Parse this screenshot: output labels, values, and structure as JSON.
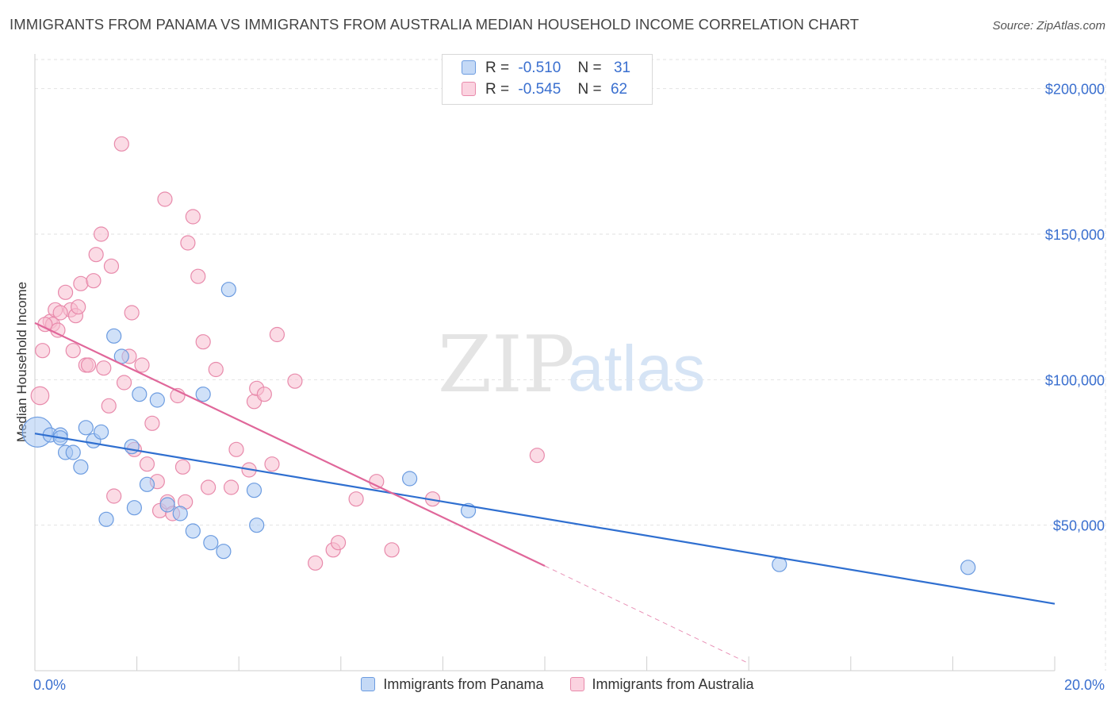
{
  "title": "IMMIGRANTS FROM PANAMA VS IMMIGRANTS FROM AUSTRALIA MEDIAN HOUSEHOLD INCOME CORRELATION CHART",
  "source": "Source: ZipAtlas.com",
  "watermark": {
    "zip": "ZIP",
    "atlas": "atlas"
  },
  "legend": {
    "panama": {
      "r_label": "R =",
      "r_value": "-0.510",
      "n_label": "N =",
      "n_value": "31"
    },
    "australia": {
      "r_label": "R =",
      "r_value": "-0.545",
      "n_label": "N =",
      "n_value": "62"
    }
  },
  "colors": {
    "panama_fill": "#aac8f2",
    "panama_stroke": "#6b9be0",
    "panama_line": "#2f6fd0",
    "australia_fill": "#f7bdd0",
    "australia_stroke": "#e88aab",
    "australia_line": "#e0679a",
    "axis_label": "#3a6fcf",
    "grid": "#e2e2e2"
  },
  "chart_data": {
    "type": "scatter",
    "title": "IMMIGRANTS FROM PANAMA VS IMMIGRANTS FROM AUSTRALIA MEDIAN HOUSEHOLD INCOME CORRELATION CHART",
    "xlabel": "",
    "ylabel": "Median Household Income",
    "xlim": [
      0,
      20
    ],
    "ylim": [
      0,
      210000
    ],
    "x_tick_labels": [
      "0.0%",
      "20.0%"
    ],
    "y_ticks": [
      50000,
      100000,
      150000,
      200000
    ],
    "y_tick_labels": [
      "$50,000",
      "$100,000",
      "$150,000",
      "$200,000"
    ],
    "grid": true,
    "legend_position": "top-center",
    "series": [
      {
        "name": "Immigrants from Panama",
        "r": -0.51,
        "n": 31,
        "points": [
          [
            0.05,
            82000,
            3
          ],
          [
            0.3,
            81000,
            1
          ],
          [
            0.5,
            81000,
            1
          ],
          [
            0.6,
            75000,
            1
          ],
          [
            0.75,
            75000,
            1
          ],
          [
            0.9,
            70000,
            1
          ],
          [
            1.0,
            83500,
            1
          ],
          [
            1.15,
            79000,
            1
          ],
          [
            1.3,
            82000,
            1
          ],
          [
            1.4,
            52000,
            1
          ],
          [
            1.55,
            115000,
            1
          ],
          [
            1.7,
            108000,
            1
          ],
          [
            1.9,
            77000,
            1
          ],
          [
            1.95,
            56000,
            1
          ],
          [
            2.05,
            95000,
            1
          ],
          [
            2.2,
            64000,
            1
          ],
          [
            2.4,
            93000,
            1
          ],
          [
            2.6,
            57000,
            1
          ],
          [
            2.85,
            54000,
            1
          ],
          [
            3.1,
            48000,
            1
          ],
          [
            3.3,
            95000,
            1
          ],
          [
            3.45,
            44000,
            1
          ],
          [
            3.7,
            41000,
            1
          ],
          [
            3.8,
            131000,
            1
          ],
          [
            4.3,
            62000,
            1
          ],
          [
            4.35,
            50000,
            1
          ],
          [
            7.35,
            66000,
            1
          ],
          [
            8.5,
            55000,
            1
          ],
          [
            14.6,
            36500,
            1
          ],
          [
            18.3,
            35500,
            1
          ],
          [
            0.5,
            80000,
            1
          ]
        ],
        "trend": {
          "x": [
            0,
            20
          ],
          "y": [
            81500,
            23000
          ],
          "style": "solid"
        }
      },
      {
        "name": "Immigrants from Australia",
        "r": -0.545,
        "n": 62,
        "points": [
          [
            0.1,
            94500,
            2
          ],
          [
            0.15,
            110000,
            1
          ],
          [
            0.3,
            120000,
            1
          ],
          [
            0.35,
            119000,
            1
          ],
          [
            0.4,
            124000,
            1
          ],
          [
            0.45,
            117000,
            1
          ],
          [
            0.6,
            130000,
            1
          ],
          [
            0.7,
            124000,
            1
          ],
          [
            0.75,
            110000,
            1
          ],
          [
            0.8,
            122000,
            1
          ],
          [
            0.85,
            125000,
            1
          ],
          [
            0.9,
            133000,
            1
          ],
          [
            1.0,
            105000,
            1
          ],
          [
            1.05,
            105000,
            1
          ],
          [
            1.15,
            134000,
            1
          ],
          [
            1.2,
            143000,
            1
          ],
          [
            1.3,
            150000,
            1
          ],
          [
            1.35,
            104000,
            1
          ],
          [
            1.45,
            91000,
            1
          ],
          [
            1.5,
            139000,
            1
          ],
          [
            1.55,
            60000,
            1
          ],
          [
            1.7,
            181000,
            1
          ],
          [
            1.75,
            99000,
            1
          ],
          [
            1.85,
            108000,
            1
          ],
          [
            1.9,
            123000,
            1
          ],
          [
            1.95,
            76000,
            1
          ],
          [
            2.1,
            105000,
            1
          ],
          [
            2.2,
            71000,
            1
          ],
          [
            2.3,
            85000,
            1
          ],
          [
            2.4,
            65000,
            1
          ],
          [
            2.45,
            55000,
            1
          ],
          [
            2.55,
            162000,
            1
          ],
          [
            2.6,
            58000,
            1
          ],
          [
            2.7,
            54000,
            1
          ],
          [
            2.8,
            94500,
            1
          ],
          [
            2.9,
            70000,
            1
          ],
          [
            2.95,
            58000,
            1
          ],
          [
            3.0,
            147000,
            1
          ],
          [
            3.1,
            156000,
            1
          ],
          [
            3.2,
            135500,
            1
          ],
          [
            3.3,
            113000,
            1
          ],
          [
            3.4,
            63000,
            1
          ],
          [
            3.55,
            103500,
            1
          ],
          [
            3.85,
            63000,
            1
          ],
          [
            3.95,
            76000,
            1
          ],
          [
            4.2,
            69000,
            1
          ],
          [
            4.3,
            92500,
            1
          ],
          [
            4.35,
            97000,
            1
          ],
          [
            4.5,
            95000,
            1
          ],
          [
            4.65,
            71000,
            1
          ],
          [
            4.75,
            115500,
            1
          ],
          [
            5.1,
            99500,
            1
          ],
          [
            5.5,
            37000,
            1
          ],
          [
            5.85,
            41500,
            1
          ],
          [
            5.95,
            44000,
            1
          ],
          [
            6.3,
            59000,
            1
          ],
          [
            6.7,
            65000,
            1
          ],
          [
            7.0,
            41500,
            1
          ],
          [
            7.8,
            59000,
            1
          ],
          [
            9.85,
            74000,
            1
          ],
          [
            0.2,
            119000,
            1
          ],
          [
            0.5,
            123000,
            1
          ]
        ],
        "trend": {
          "x": [
            0,
            10
          ],
          "y": [
            119500,
            36000
          ],
          "style": "solid"
        },
        "trend_extension": {
          "x": [
            10,
            14
          ],
          "y": [
            36000,
            2500
          ],
          "style": "dashed"
        }
      }
    ]
  },
  "bottom_legend": [
    "Immigrants from Panama",
    "Immigrants from Australia"
  ]
}
